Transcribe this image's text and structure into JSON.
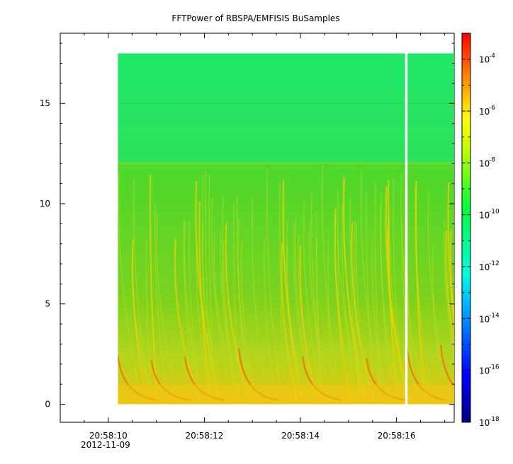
{
  "chart_data": {
    "type": "heatmap",
    "title": "FFTPower of RBSPA/EMFISIS  BuSamples",
    "xlabel": "",
    "ylabel": "",
    "x_axis": {
      "ticks": [
        "20:58:10",
        "20:58:12",
        "20:58:14",
        "20:58:16"
      ],
      "date_label": "2012-11-09",
      "range": [
        "20:58:09.0",
        "20:58:17.2"
      ]
    },
    "y_axis": {
      "ticks": [
        0,
        5,
        10,
        15
      ],
      "range": [
        -0.9,
        18.5
      ]
    },
    "data_extent": {
      "x_start": "20:58:10.2",
      "x_end": "20:58:17.2",
      "y_min": 0,
      "y_max": 17.5,
      "data_gap_at": "20:58:16.2"
    },
    "features": {
      "band_edge_y": 12,
      "noise_line_y": 15,
      "dominant_level_above_band": "1e-12 to 1e-11",
      "dominant_level_below_band": "1e-10 to 1e-9",
      "low_frequency_level": "1e-8 to 1e-7"
    },
    "colorbar": {
      "scale": "log",
      "range": [
        1e-18,
        0.001
      ],
      "tick_base": "10",
      "tick_exponents": [
        "-4",
        "-6",
        "-8",
        "-10",
        "-12",
        "-14",
        "-16",
        "-18"
      ],
      "colormap": [
        "#00008b",
        "#0000ff",
        "#00ffff",
        "#00ff00",
        "#ffff00",
        "#ff0000"
      ]
    },
    "grid": false
  }
}
